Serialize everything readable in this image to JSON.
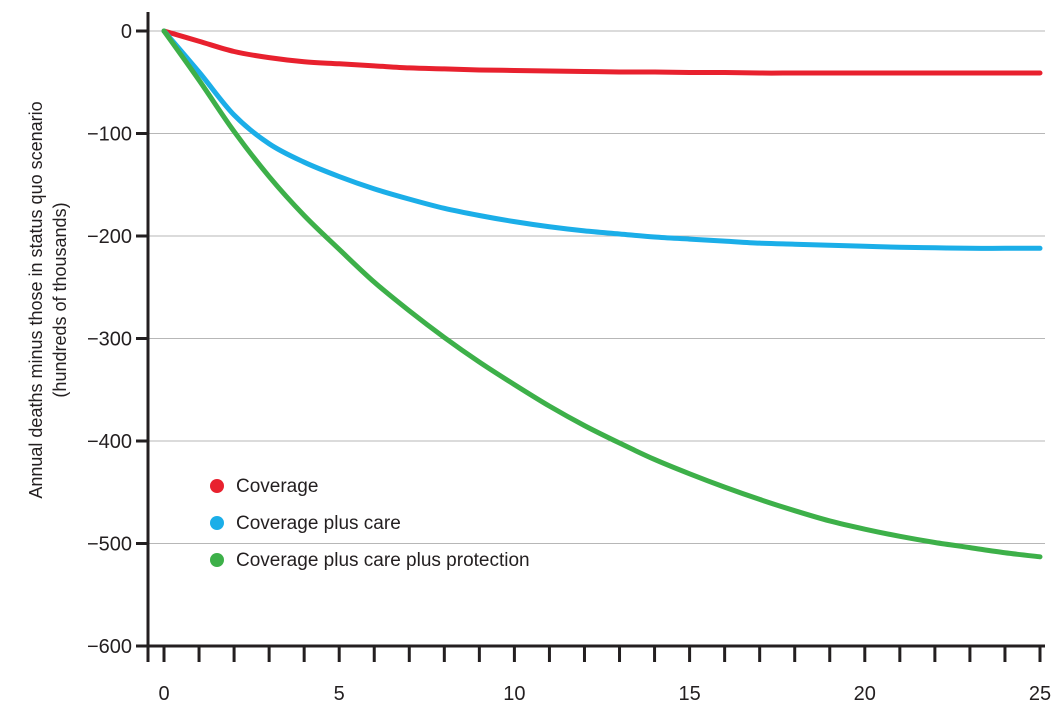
{
  "chart_data": {
    "type": "line",
    "title": "",
    "xlabel": "",
    "ylabel": "Annual deaths minus those in status quo scenario (hundreds of thousands)",
    "ylabel_lines": [
      "Annual deaths minus those in status quo scenario",
      "(hundreds of thousands)"
    ],
    "xlim": [
      0,
      25
    ],
    "ylim": [
      -600,
      0
    ],
    "x_ticks": [
      0,
      5,
      10,
      15,
      20,
      25
    ],
    "y_ticks": [
      0,
      -100,
      -200,
      -300,
      -400,
      -500,
      -600
    ],
    "x_minor_step": 1,
    "grid": "horizontal",
    "legend_position": "bottom-left",
    "x": [
      0,
      1,
      2,
      3,
      4,
      5,
      6,
      7,
      8,
      9,
      10,
      11,
      12,
      13,
      14,
      15,
      16,
      17,
      18,
      19,
      20,
      21,
      22,
      23,
      24,
      25
    ],
    "series": [
      {
        "name": "Coverage",
        "color": "#e8212e",
        "values": [
          0,
          -10,
          -20,
          -26,
          -30,
          -32,
          -34,
          -36,
          -37,
          -38,
          -38.5,
          -39,
          -39.5,
          -40,
          -40,
          -40.5,
          -40.5,
          -41,
          -41,
          -41,
          -41,
          -41,
          -41,
          -41,
          -41,
          -41
        ]
      },
      {
        "name": "Coverage plus care",
        "color": "#1baee8",
        "values": [
          0,
          -40,
          -82,
          -110,
          -128,
          -142,
          -154,
          -164,
          -173,
          -180,
          -186,
          -191,
          -195,
          -198,
          -201,
          -203,
          -205,
          -207,
          -208,
          -209,
          -210,
          -211,
          -211.5,
          -212,
          -212,
          -212
        ]
      },
      {
        "name": "Coverage plus care plus protection",
        "color": "#3db049",
        "values": [
          0,
          -48,
          -98,
          -142,
          -180,
          -213,
          -245,
          -273,
          -299,
          -323,
          -345,
          -366,
          -385,
          -402,
          -418,
          -432,
          -445,
          -457,
          -468,
          -478,
          -486,
          -493,
          -499,
          -504,
          -509,
          -513
        ]
      }
    ]
  }
}
